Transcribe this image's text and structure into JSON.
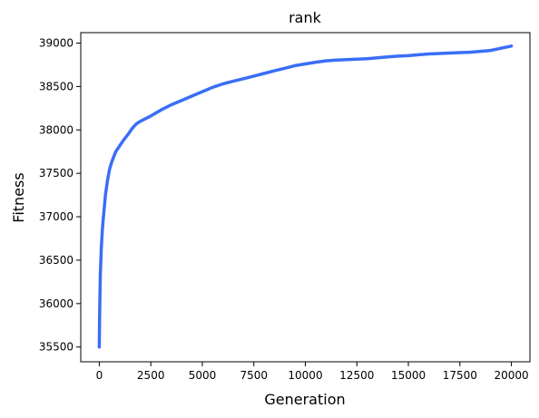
{
  "chart_data": {
    "type": "line",
    "title": "rank",
    "xlabel": "Generation",
    "ylabel": "Fitness",
    "xlim": [
      -900,
      20900
    ],
    "ylim": [
      35330,
      39120
    ],
    "xticks": [
      0,
      2500,
      5000,
      7500,
      10000,
      12500,
      15000,
      17500,
      20000
    ],
    "xtick_labels": [
      "0",
      "2500",
      "5000",
      "7500",
      "10000",
      "12500",
      "15000",
      "17500",
      "20000"
    ],
    "yticks": [
      35500,
      36000,
      36500,
      37000,
      37500,
      38000,
      38500,
      39000
    ],
    "ytick_labels": [
      "35500",
      "36000",
      "36500",
      "37000",
      "37500",
      "38000",
      "38500",
      "39000"
    ],
    "grid": false,
    "series": [
      {
        "color": "#3a6ef5",
        "x": [
          0,
          20,
          50,
          100,
          150,
          200,
          300,
          400,
          500,
          600,
          700,
          800,
          1000,
          1200,
          1400,
          1600,
          1800,
          2000,
          2500,
          3000,
          3500,
          4000,
          4500,
          5000,
          5500,
          6000,
          6500,
          7000,
          7500,
          8000,
          8500,
          9000,
          9500,
          10000,
          10500,
          11000,
          11500,
          12000,
          12500,
          13000,
          13500,
          14000,
          14500,
          15000,
          15500,
          16000,
          16500,
          17000,
          17500,
          18000,
          18500,
          19000,
          19500,
          20000
        ],
        "y": [
          35500,
          35950,
          36350,
          36650,
          36850,
          37000,
          37250,
          37420,
          37550,
          37630,
          37690,
          37750,
          37820,
          37890,
          37950,
          38020,
          38070,
          38100,
          38160,
          38230,
          38290,
          38340,
          38390,
          38440,
          38490,
          38530,
          38560,
          38590,
          38620,
          38650,
          38680,
          38710,
          38740,
          38760,
          38780,
          38795,
          38805,
          38810,
          38815,
          38820,
          38830,
          38840,
          38850,
          38855,
          38865,
          38875,
          38880,
          38885,
          38890,
          38895,
          38905,
          38915,
          38940,
          38965
        ]
      }
    ]
  }
}
